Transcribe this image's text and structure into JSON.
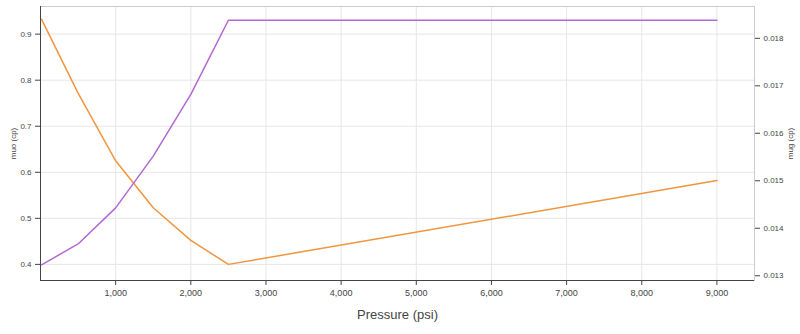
{
  "chart_data": {
    "type": "line",
    "x_label": "Pressure (psi)",
    "y_label": "muo (cp)",
    "y2_label": "mug (cp)",
    "grid": true,
    "xlim": [
      0,
      9500
    ],
    "xticks": [
      1000,
      2000,
      3000,
      4000,
      5000,
      6000,
      7000,
      8000,
      9000
    ],
    "ylim": [
      0.365,
      0.96
    ],
    "yticks": [
      0.4,
      0.5,
      0.6,
      0.7,
      0.8,
      0.9
    ],
    "y2lim": [
      0.0129,
      0.01867
    ],
    "y2ticks": [
      0.013,
      0.014,
      0.015,
      0.016,
      0.017,
      0.018
    ],
    "x": [
      14.7,
      500,
      1000,
      1500,
      2000,
      2500,
      9000
    ],
    "series": [
      {
        "name": "muo",
        "color": "#f0953f",
        "values": [
          0.932,
          0.772,
          0.625,
          0.523,
          0.452,
          0.4,
          0.582
        ]
      },
      {
        "name": "mug",
        "color": "#b368d4",
        "axis": "y2",
        "values": [
          0.01323,
          0.01367,
          0.01443,
          0.01552,
          0.01682,
          0.01838,
          0.01838
        ]
      }
    ]
  }
}
